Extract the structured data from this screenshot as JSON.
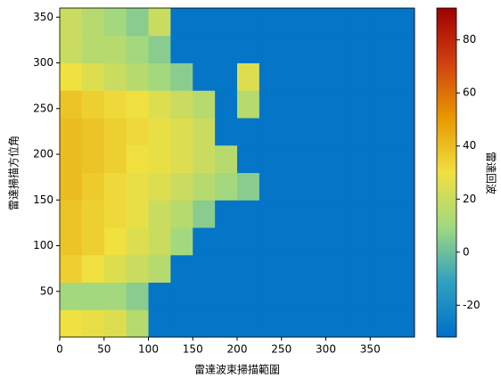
{
  "chart_data": {
    "type": "heatmap",
    "x_label": "雷達波束掃描範圍",
    "y_label": "雷達掃描方位角",
    "colorbar_label": "雷達回波",
    "x_edges": [
      0,
      25,
      50,
      75,
      100,
      125,
      150,
      175,
      200,
      225,
      250,
      275,
      300,
      325,
      350,
      375,
      400
    ],
    "y_edges": [
      0,
      30,
      60,
      90,
      120,
      150,
      180,
      210,
      240,
      270,
      300,
      330,
      360
    ],
    "values": [
      [
        30,
        28,
        25,
        15,
        -30,
        -30,
        -30,
        -30,
        -30,
        -30,
        -30,
        -30,
        -30,
        -30,
        -30,
        -30
      ],
      [
        10,
        10,
        10,
        5,
        -30,
        -30,
        -30,
        -30,
        -30,
        -30,
        -30,
        -30,
        -30,
        -30,
        -30,
        -30
      ],
      [
        35,
        30,
        25,
        20,
        15,
        -30,
        -30,
        -30,
        -30,
        -30,
        -30,
        -30,
        -30,
        -30,
        -30,
        -30
      ],
      [
        38,
        35,
        30,
        25,
        20,
        10,
        -30,
        -30,
        -30,
        -30,
        -30,
        -30,
        -30,
        -30,
        -30,
        -30
      ],
      [
        38,
        35,
        32,
        28,
        20,
        15,
        5,
        -30,
        -30,
        -30,
        -30,
        -30,
        -30,
        -30,
        -30,
        -30
      ],
      [
        40,
        36,
        32,
        28,
        25,
        20,
        15,
        10,
        5,
        -30,
        -30,
        -30,
        -30,
        -30,
        -30,
        -30
      ],
      [
        40,
        38,
        35,
        30,
        28,
        25,
        20,
        15,
        -30,
        -30,
        -30,
        -30,
        -30,
        -30,
        -30,
        -30
      ],
      [
        40,
        38,
        35,
        32,
        28,
        25,
        20,
        -30,
        -30,
        -30,
        -30,
        -30,
        -30,
        -30,
        -30,
        -30
      ],
      [
        38,
        35,
        32,
        30,
        25,
        20,
        15,
        -30,
        15,
        -30,
        -30,
        -30,
        -30,
        -30,
        -30,
        -30
      ],
      [
        30,
        25,
        20,
        15,
        10,
        5,
        -30,
        -30,
        25,
        -30,
        -30,
        -30,
        -30,
        -30,
        -30,
        -30
      ],
      [
        20,
        15,
        15,
        10,
        5,
        -30,
        -30,
        -30,
        -30,
        -30,
        -30,
        -30,
        -30,
        -30,
        -30,
        -30
      ],
      [
        20,
        15,
        10,
        5,
        20,
        -30,
        -30,
        -30,
        -30,
        -30,
        -30,
        -30,
        -30,
        -30,
        -30,
        -30
      ]
    ],
    "colormap": [
      "#0070c8",
      "#30a0c0",
      "#a0d880",
      "#f0e040",
      "#e89800",
      "#d04010",
      "#a00000"
    ],
    "xlim": [
      0,
      400
    ],
    "xticks": [
      0,
      50,
      100,
      150,
      200,
      250,
      300,
      350
    ],
    "ylim": [
      0,
      360
    ],
    "yticks": [
      50,
      100,
      150,
      200,
      250,
      300,
      350
    ],
    "clim": [
      -32,
      92
    ],
    "cticks": [
      -20,
      0,
      20,
      40,
      60,
      80
    ]
  }
}
